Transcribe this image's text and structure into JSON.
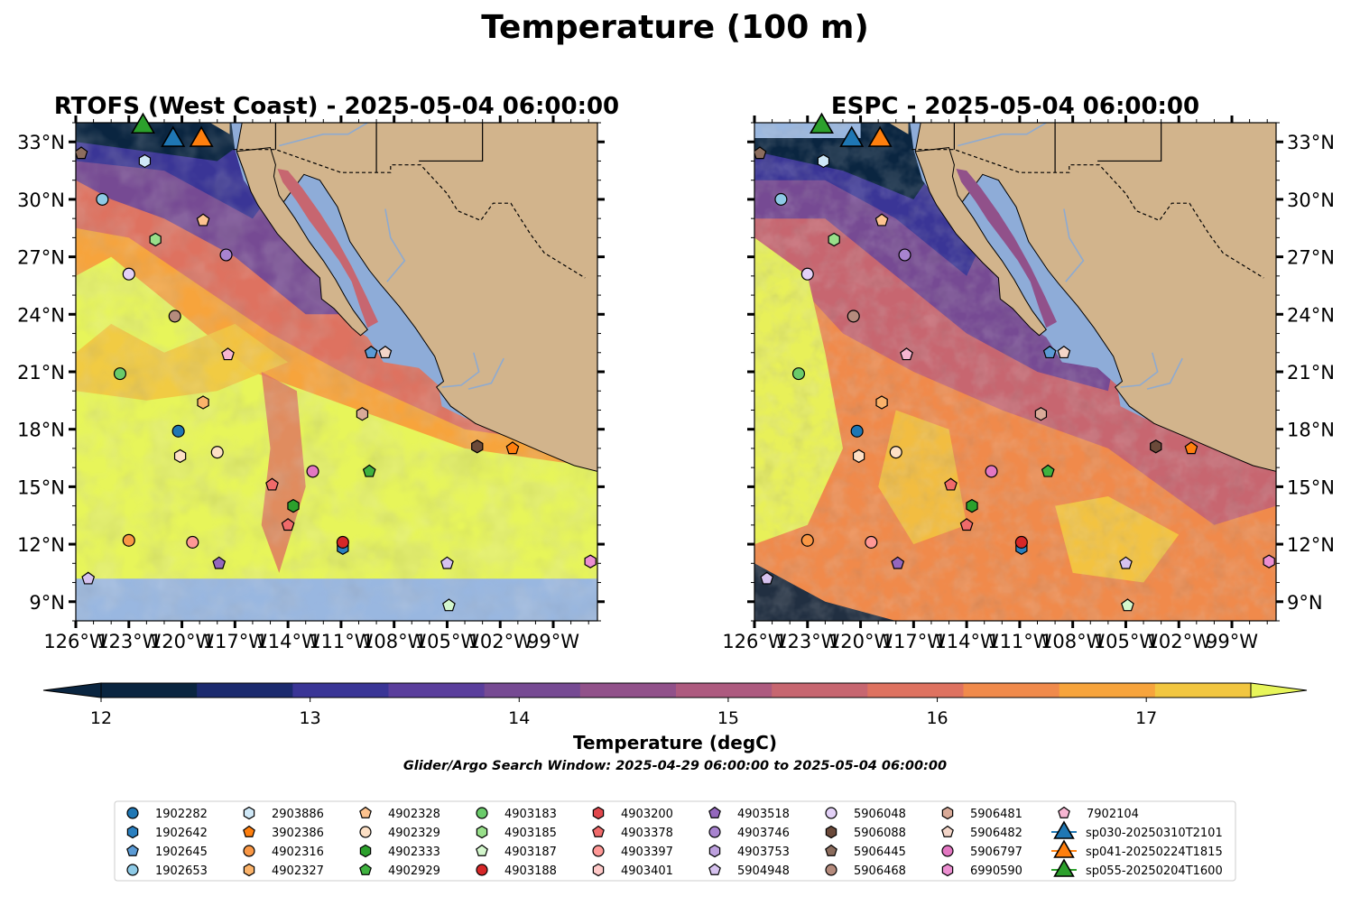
{
  "title": "Temperature (100 m)",
  "colorbar": {
    "label": "Temperature (degC)",
    "ticks": [
      "12",
      "13",
      "14",
      "15",
      "16",
      "17"
    ],
    "vmin": 12,
    "vmax": 17.5,
    "step": 0.5,
    "colors": [
      "#0a2540",
      "#1b2a6e",
      "#3a3596",
      "#5a3e9c",
      "#764a93",
      "#91518a",
      "#ad5a7f",
      "#c76670",
      "#de7260",
      "#f08a4b",
      "#f7a43c",
      "#f2c640",
      "#e7f55a"
    ]
  },
  "search_window": "Glider/Argo Search Window: 2025-04-29 06:00:00 to 2025-05-04 06:00:00",
  "chart_data": [
    {
      "type": "heatmap",
      "title": "RTOFS (West Coast) - 2025-05-04 06:00:00",
      "xlim": [
        -126,
        -96.5
      ],
      "ylim": [
        8,
        34
      ],
      "x_ticks": [
        "126°W",
        "123°W",
        "120°W",
        "117°W",
        "114°W",
        "111°W",
        "108°W",
        "105°W",
        "102°W",
        "99°W"
      ],
      "y_ticks": [
        "9°N",
        "12°N",
        "15°N",
        "18°N",
        "21°N",
        "24°N",
        "27°N",
        "30°N",
        "33°N"
      ],
      "y_tick_side": "left",
      "no_data_below_lat": 10.2
    },
    {
      "type": "heatmap",
      "title": "ESPC - 2025-05-04 06:00:00",
      "xlim": [
        -126,
        -96.5
      ],
      "ylim": [
        8,
        34
      ],
      "x_ticks": [
        "126°W",
        "123°W",
        "120°W",
        "117°W",
        "114°W",
        "111°W",
        "108°W",
        "105°W",
        "102°W",
        "99°W"
      ],
      "y_ticks": [
        "9°N",
        "12°N",
        "15°N",
        "18°N",
        "21°N",
        "24°N",
        "27°N",
        "30°N",
        "33°N"
      ],
      "y_tick_side": "right",
      "no_data_below_lat": null
    }
  ],
  "legend": [
    {
      "label": "1902282",
      "marker": "circle",
      "color": "#1f77b4"
    },
    {
      "label": "1902642",
      "marker": "hexagon",
      "color": "#2a7fbf"
    },
    {
      "label": "1902645",
      "marker": "pentagon",
      "color": "#5b9bd5"
    },
    {
      "label": "1902653",
      "marker": "circle",
      "color": "#8ecae6"
    },
    {
      "label": "2903886",
      "marker": "hexagon",
      "color": "#cfe8f7"
    },
    {
      "label": "3902386",
      "marker": "pentagon",
      "color": "#ff7f0e"
    },
    {
      "label": "4902316",
      "marker": "circle",
      "color": "#f99745"
    },
    {
      "label": "4902327",
      "marker": "hexagon",
      "color": "#fbb36a"
    },
    {
      "label": "4902328",
      "marker": "pentagon",
      "color": "#fdc38f"
    },
    {
      "label": "4902329",
      "marker": "circle",
      "color": "#fde0c5"
    },
    {
      "label": "4902333",
      "marker": "hexagon",
      "color": "#2ca02c"
    },
    {
      "label": "4902929",
      "marker": "pentagon",
      "color": "#3fb23f"
    },
    {
      "label": "4903183",
      "marker": "circle",
      "color": "#6acb6a"
    },
    {
      "label": "4903185",
      "marker": "hexagon",
      "color": "#98df8a"
    },
    {
      "label": "4903187",
      "marker": "pentagon",
      "color": "#d4f7cd"
    },
    {
      "label": "4903188",
      "marker": "circle",
      "color": "#d62728"
    },
    {
      "label": "4903200",
      "marker": "hexagon",
      "color": "#e0474c"
    },
    {
      "label": "4903378",
      "marker": "pentagon",
      "color": "#f06a6a"
    },
    {
      "label": "4903397",
      "marker": "circle",
      "color": "#ff9896"
    },
    {
      "label": "4903401",
      "marker": "hexagon",
      "color": "#ffc9c8"
    },
    {
      "label": "4903518",
      "marker": "pentagon",
      "color": "#9467bd"
    },
    {
      "label": "4903746",
      "marker": "circle",
      "color": "#a883cf"
    },
    {
      "label": "4903753",
      "marker": "hexagon",
      "color": "#bda0de"
    },
    {
      "label": "5904948",
      "marker": "pentagon",
      "color": "#d6c2ef"
    },
    {
      "label": "5906048",
      "marker": "circle",
      "color": "#e3d1f7"
    },
    {
      "label": "5906088",
      "marker": "hexagon",
      "color": "#6b4a3a"
    },
    {
      "label": "5906445",
      "marker": "pentagon",
      "color": "#8c6d5e"
    },
    {
      "label": "5906468",
      "marker": "circle",
      "color": "#b58b7d"
    },
    {
      "label": "5906481",
      "marker": "hexagon",
      "color": "#d9aa98"
    },
    {
      "label": "5906482",
      "marker": "pentagon",
      "color": "#f3d5c8"
    },
    {
      "label": "5906797",
      "marker": "circle",
      "color": "#e377c2"
    },
    {
      "label": "6990590",
      "marker": "hexagon",
      "color": "#ec8fd1"
    },
    {
      "label": "7902104",
      "marker": "pentagon",
      "color": "#f7b6d2"
    },
    {
      "label": "sp030-20250310T2101",
      "marker": "triangle",
      "color": "#1f77b4"
    },
    {
      "label": "sp041-20250224T1815",
      "marker": "triangle",
      "color": "#ff7f0e"
    },
    {
      "label": "sp055-20250204T1600",
      "marker": "triangle",
      "color": "#2ca02c"
    }
  ],
  "floats": [
    {
      "lon": -126.4,
      "lat": 32.4,
      "marker": "pentagon",
      "color": "#8c6d5e"
    },
    {
      "lon": -122.1,
      "lat": 32.0,
      "marker": "hexagon",
      "color": "#cfe8f7"
    },
    {
      "lon": -124.5,
      "lat": 30.0,
      "marker": "circle",
      "color": "#8ecae6"
    },
    {
      "lon": -118.8,
      "lat": 28.9,
      "marker": "pentagon",
      "color": "#fdc38f"
    },
    {
      "lon": -121.5,
      "lat": 27.9,
      "marker": "hexagon",
      "color": "#98df8a"
    },
    {
      "lon": -117.5,
      "lat": 27.1,
      "marker": "circle",
      "color": "#a883cf"
    },
    {
      "lon": -123.0,
      "lat": 26.1,
      "marker": "circle",
      "color": "#e3d1f7"
    },
    {
      "lon": -120.4,
      "lat": 23.9,
      "marker": "circle",
      "color": "#b58b7d"
    },
    {
      "lon": -117.4,
      "lat": 21.9,
      "marker": "pentagon",
      "color": "#f7b6d2"
    },
    {
      "lon": -109.3,
      "lat": 22.0,
      "marker": "pentagon",
      "color": "#5b9bd5"
    },
    {
      "lon": -108.5,
      "lat": 22.0,
      "marker": "pentagon",
      "color": "#f3d5c8"
    },
    {
      "lon": -123.5,
      "lat": 20.9,
      "marker": "circle",
      "color": "#6acb6a"
    },
    {
      "lon": -118.8,
      "lat": 19.4,
      "marker": "hexagon",
      "color": "#fbb36a"
    },
    {
      "lon": -109.8,
      "lat": 18.8,
      "marker": "hexagon",
      "color": "#d9aa98"
    },
    {
      "lon": -120.2,
      "lat": 17.9,
      "marker": "circle",
      "color": "#1f77b4"
    },
    {
      "lon": -120.1,
      "lat": 16.6,
      "marker": "hexagon",
      "color": "#fde0c5"
    },
    {
      "lon": -118.0,
      "lat": 16.8,
      "marker": "circle",
      "color": "#fde0c5"
    },
    {
      "lon": -103.3,
      "lat": 17.1,
      "marker": "hexagon",
      "color": "#6b4a3a"
    },
    {
      "lon": -101.3,
      "lat": 17.0,
      "marker": "pentagon",
      "color": "#ff7f0e"
    },
    {
      "lon": -112.6,
      "lat": 15.8,
      "marker": "circle",
      "color": "#e377c2"
    },
    {
      "lon": -109.4,
      "lat": 15.8,
      "marker": "pentagon",
      "color": "#3fb23f"
    },
    {
      "lon": -114.9,
      "lat": 15.1,
      "marker": "pentagon",
      "color": "#f06a6a"
    },
    {
      "lon": -113.7,
      "lat": 14.0,
      "marker": "hexagon",
      "color": "#2ca02c"
    },
    {
      "lon": -114.0,
      "lat": 13.0,
      "marker": "pentagon",
      "color": "#f06a6a"
    },
    {
      "lon": -123.0,
      "lat": 12.2,
      "marker": "circle",
      "color": "#f99745"
    },
    {
      "lon": -119.4,
      "lat": 12.1,
      "marker": "circle",
      "color": "#ff9896"
    },
    {
      "lon": -110.9,
      "lat": 11.8,
      "marker": "hexagon",
      "color": "#2a7fbf"
    },
    {
      "lon": -110.9,
      "lat": 12.1,
      "marker": "circle",
      "color": "#d62728"
    },
    {
      "lon": -117.9,
      "lat": 11.0,
      "marker": "pentagon",
      "color": "#9467bd"
    },
    {
      "lon": -105.0,
      "lat": 11.0,
      "marker": "pentagon",
      "color": "#d6c2ef"
    },
    {
      "lon": -96.9,
      "lat": 11.1,
      "marker": "hexagon",
      "color": "#ec8fd1"
    },
    {
      "lon": -125.3,
      "lat": 10.2,
      "marker": "pentagon",
      "color": "#d6c2ef"
    },
    {
      "lon": -104.9,
      "lat": 8.8,
      "marker": "pentagon",
      "color": "#d4f7cd"
    }
  ],
  "gliders": [
    {
      "lon": -122.2,
      "lat": 33.8,
      "color": "#2ca02c"
    },
    {
      "lon": -120.5,
      "lat": 33.1,
      "color": "#1f77b4"
    },
    {
      "lon": -118.9,
      "lat": 33.1,
      "color": "#ff7f0e"
    }
  ],
  "map_colors": {
    "land": "#d2b48c",
    "nodata": "#99b7e0",
    "shelf": "#8eacd8",
    "rivers": "#8eaad0"
  }
}
